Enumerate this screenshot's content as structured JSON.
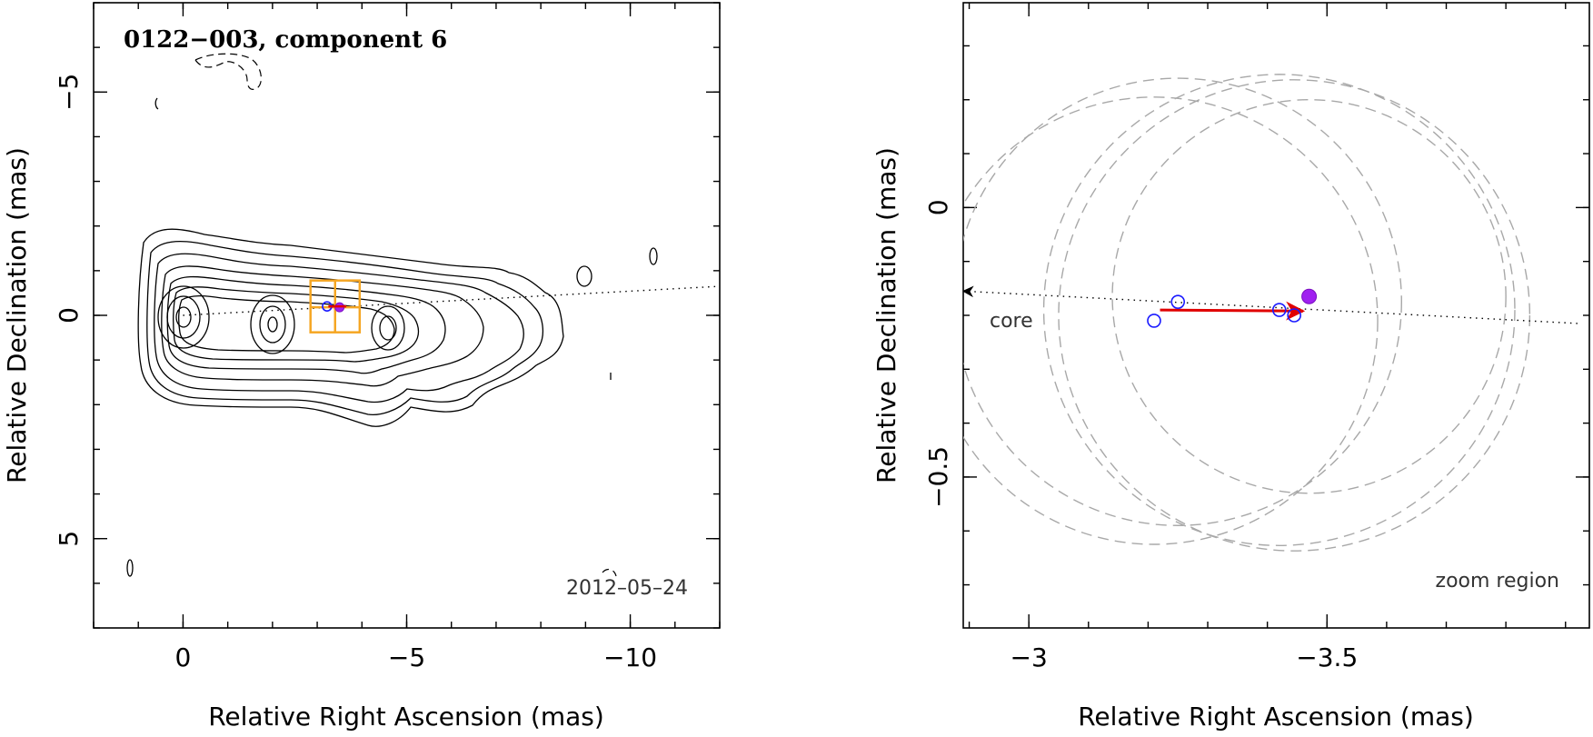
{
  "chart_data": [
    {
      "type": "contour",
      "title": "0122−003, component 6",
      "date": "2012–05–24",
      "xlabel": "Relative Right Ascension (mas)",
      "ylabel": "Relative Declination (mas)",
      "xlim": [
        2,
        -12
      ],
      "ylim": [
        -7,
        7
      ],
      "xticks": [
        {
          "value": 0,
          "label": "0"
        },
        {
          "value": -5,
          "label": "−5"
        },
        {
          "value": -10,
          "label": "−10"
        }
      ],
      "yticks": [
        {
          "value": 5,
          "label": "5"
        },
        {
          "value": 0,
          "label": "0"
        },
        {
          "value": -5,
          "label": "−5"
        }
      ],
      "contour_peaks_ra": [
        0,
        -2,
        -4.7
      ],
      "component_position": {
        "ra": -3.4,
        "dec": -0.18
      },
      "zoom_region": {
        "ra": [
          -2.85,
          -3.95
        ],
        "dec": [
          0.38,
          -0.78
        ]
      }
    },
    {
      "type": "scatter",
      "xlabel": "Relative Right Ascension (mas)",
      "ylabel": "Relative Declination (mas)",
      "annotation_core": "core",
      "annotation_zoom": "zoom region",
      "xlim": [
        -2.89,
        -3.94
      ],
      "ylim": [
        0.38,
        -0.78
      ],
      "xticks": [
        {
          "value": -3,
          "label": "−3"
        },
        {
          "value": -3.5,
          "label": "−3.5"
        }
      ],
      "yticks": [
        {
          "value": 0,
          "label": "0"
        },
        {
          "value": -0.5,
          "label": "−0.5"
        }
      ],
      "epochs_open": [
        {
          "ra": -3.21,
          "dec": -0.21
        },
        {
          "ra": -3.25,
          "dec": -0.175
        },
        {
          "ra": -3.42,
          "dec": -0.19
        },
        {
          "ra": -3.445,
          "dec": -0.2
        }
      ],
      "epoch_current": {
        "ra": -3.47,
        "dec": -0.165
      },
      "motion_vector": {
        "from": {
          "ra": -3.22,
          "dec": -0.19
        },
        "to": {
          "ra": -3.46,
          "dec": -0.192
        }
      },
      "core_direction": {
        "from": {
          "ra": -3.92,
          "dec": -0.215
        },
        "to": {
          "ra": -2.89,
          "dec": -0.155
        }
      },
      "beam_circles": [
        {
          "ra": -3.21,
          "dec": -0.21,
          "r": 0.375
        },
        {
          "ra": -3.25,
          "dec": -0.175,
          "r": 0.375
        },
        {
          "ra": -3.42,
          "dec": -0.19,
          "r": 0.395
        },
        {
          "ra": -3.445,
          "dec": -0.2,
          "r": 0.395
        },
        {
          "ra": -3.47,
          "dec": -0.165,
          "r": 0.33
        }
      ]
    }
  ]
}
